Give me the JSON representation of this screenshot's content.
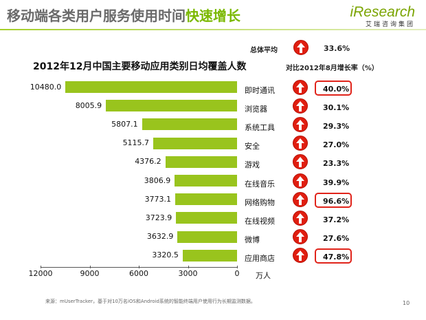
{
  "slide": {
    "title_part1": "移动端各类用户服务使用时间",
    "title_part2": "快速增长",
    "logo_main": "iResearch",
    "logo_sub": "艾瑞咨询集团",
    "page_number": "10",
    "source": "来源：mUserTracker，基于对10万名iOS和Android系统的智能终端用户使用行为长期监测数据。"
  },
  "summary": {
    "average_label": "总体平均",
    "average_value": "33.6%",
    "growth_header": "对比2012年8月增长率（%）"
  },
  "chart_data": {
    "type": "bar",
    "orientation": "horizontal",
    "title": "2012年12月中国主要移动应用类别日均覆盖人数",
    "unit": "万人",
    "categories": [
      "即时通讯",
      "浏览器",
      "系统工具",
      "安全",
      "游戏",
      "在线音乐",
      "网络购物",
      "在线视频",
      "微博",
      "应用商店"
    ],
    "values": [
      10480.0,
      8005.9,
      5807.1,
      5115.7,
      4376.2,
      3806.9,
      3773.1,
      3723.9,
      3632.9,
      3320.5
    ],
    "value_labels": [
      "10480.0",
      "8005.9",
      "5807.1",
      "5115.7",
      "4376.2",
      "3806.9",
      "3773.1",
      "3723.9",
      "3632.9",
      "3320.5"
    ],
    "growth_rates": [
      "40.0%",
      "30.1%",
      "29.3%",
      "27.0%",
      "23.3%",
      "39.9%",
      "96.6%",
      "37.2%",
      "27.6%",
      "47.8%"
    ],
    "highlighted": [
      true,
      false,
      false,
      false,
      false,
      false,
      true,
      false,
      false,
      true
    ],
    "x_ticks": [
      "12000",
      "9000",
      "6000",
      "3000",
      "0"
    ],
    "xlim": [
      0,
      12000
    ],
    "x_reversed": true,
    "bar_color": "#99c41d",
    "highlight_color": "#e0231a",
    "icon_color": "#e01e10"
  }
}
